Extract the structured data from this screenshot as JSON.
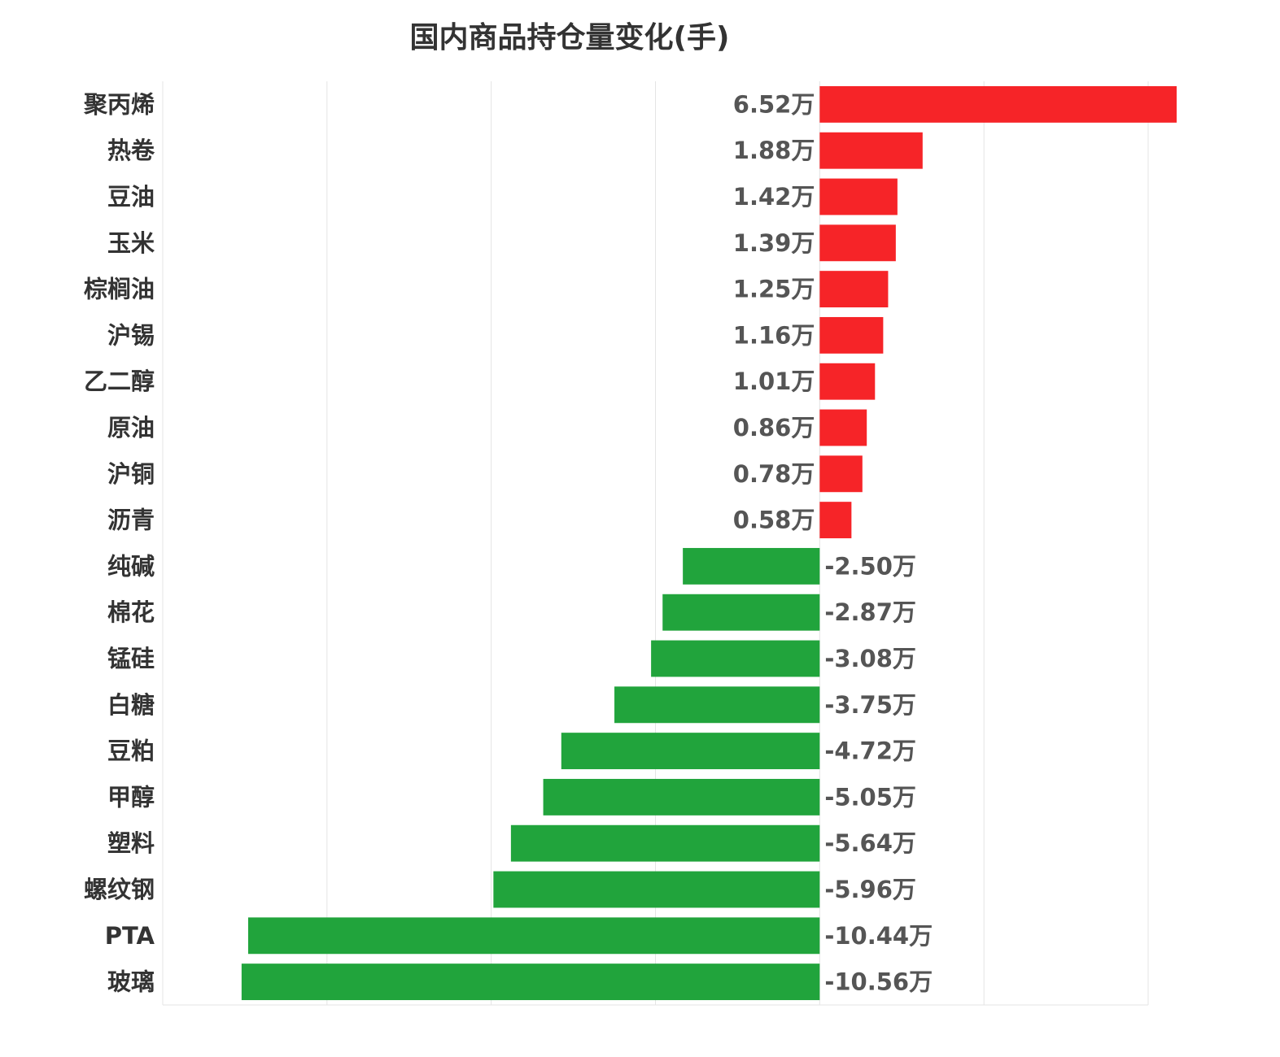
{
  "chart_data": {
    "type": "bar",
    "orientation": "horizontal",
    "title": "国内商品持仓量变化(手)",
    "xlabel": "",
    "ylabel": "",
    "unit_suffix": "万",
    "grid": true,
    "legend": "none",
    "xlim": [
      -12,
      6
    ],
    "categories": [
      "聚丙烯",
      "热卷",
      "豆油",
      "玉米",
      "棕榈油",
      "沪锡",
      "乙二醇",
      "原油",
      "沪铜",
      "沥青",
      "纯碱",
      "棉花",
      "锰硅",
      "白糖",
      "豆粕",
      "甲醇",
      "塑料",
      "螺纹钢",
      "PTA",
      "玻璃"
    ],
    "values": [
      6.52,
      1.88,
      1.42,
      1.39,
      1.25,
      1.16,
      1.01,
      0.86,
      0.78,
      0.58,
      -2.5,
      -2.87,
      -3.08,
      -3.75,
      -4.72,
      -5.05,
      -5.64,
      -5.96,
      -10.44,
      -10.56
    ],
    "value_labels": [
      "6.52万",
      "1.88万",
      "1.42万",
      "1.39万",
      "1.25万",
      "1.16万",
      "1.01万",
      "0.86万",
      "0.78万",
      "0.58万",
      "-2.50万",
      "-2.87万",
      "-3.08万",
      "-3.75万",
      "-4.72万",
      "-5.05万",
      "-5.64万",
      "-5.96万",
      "-10.44万",
      "-10.56万"
    ],
    "colors": {
      "positive": "#f62428",
      "negative": "#21a43c"
    }
  }
}
